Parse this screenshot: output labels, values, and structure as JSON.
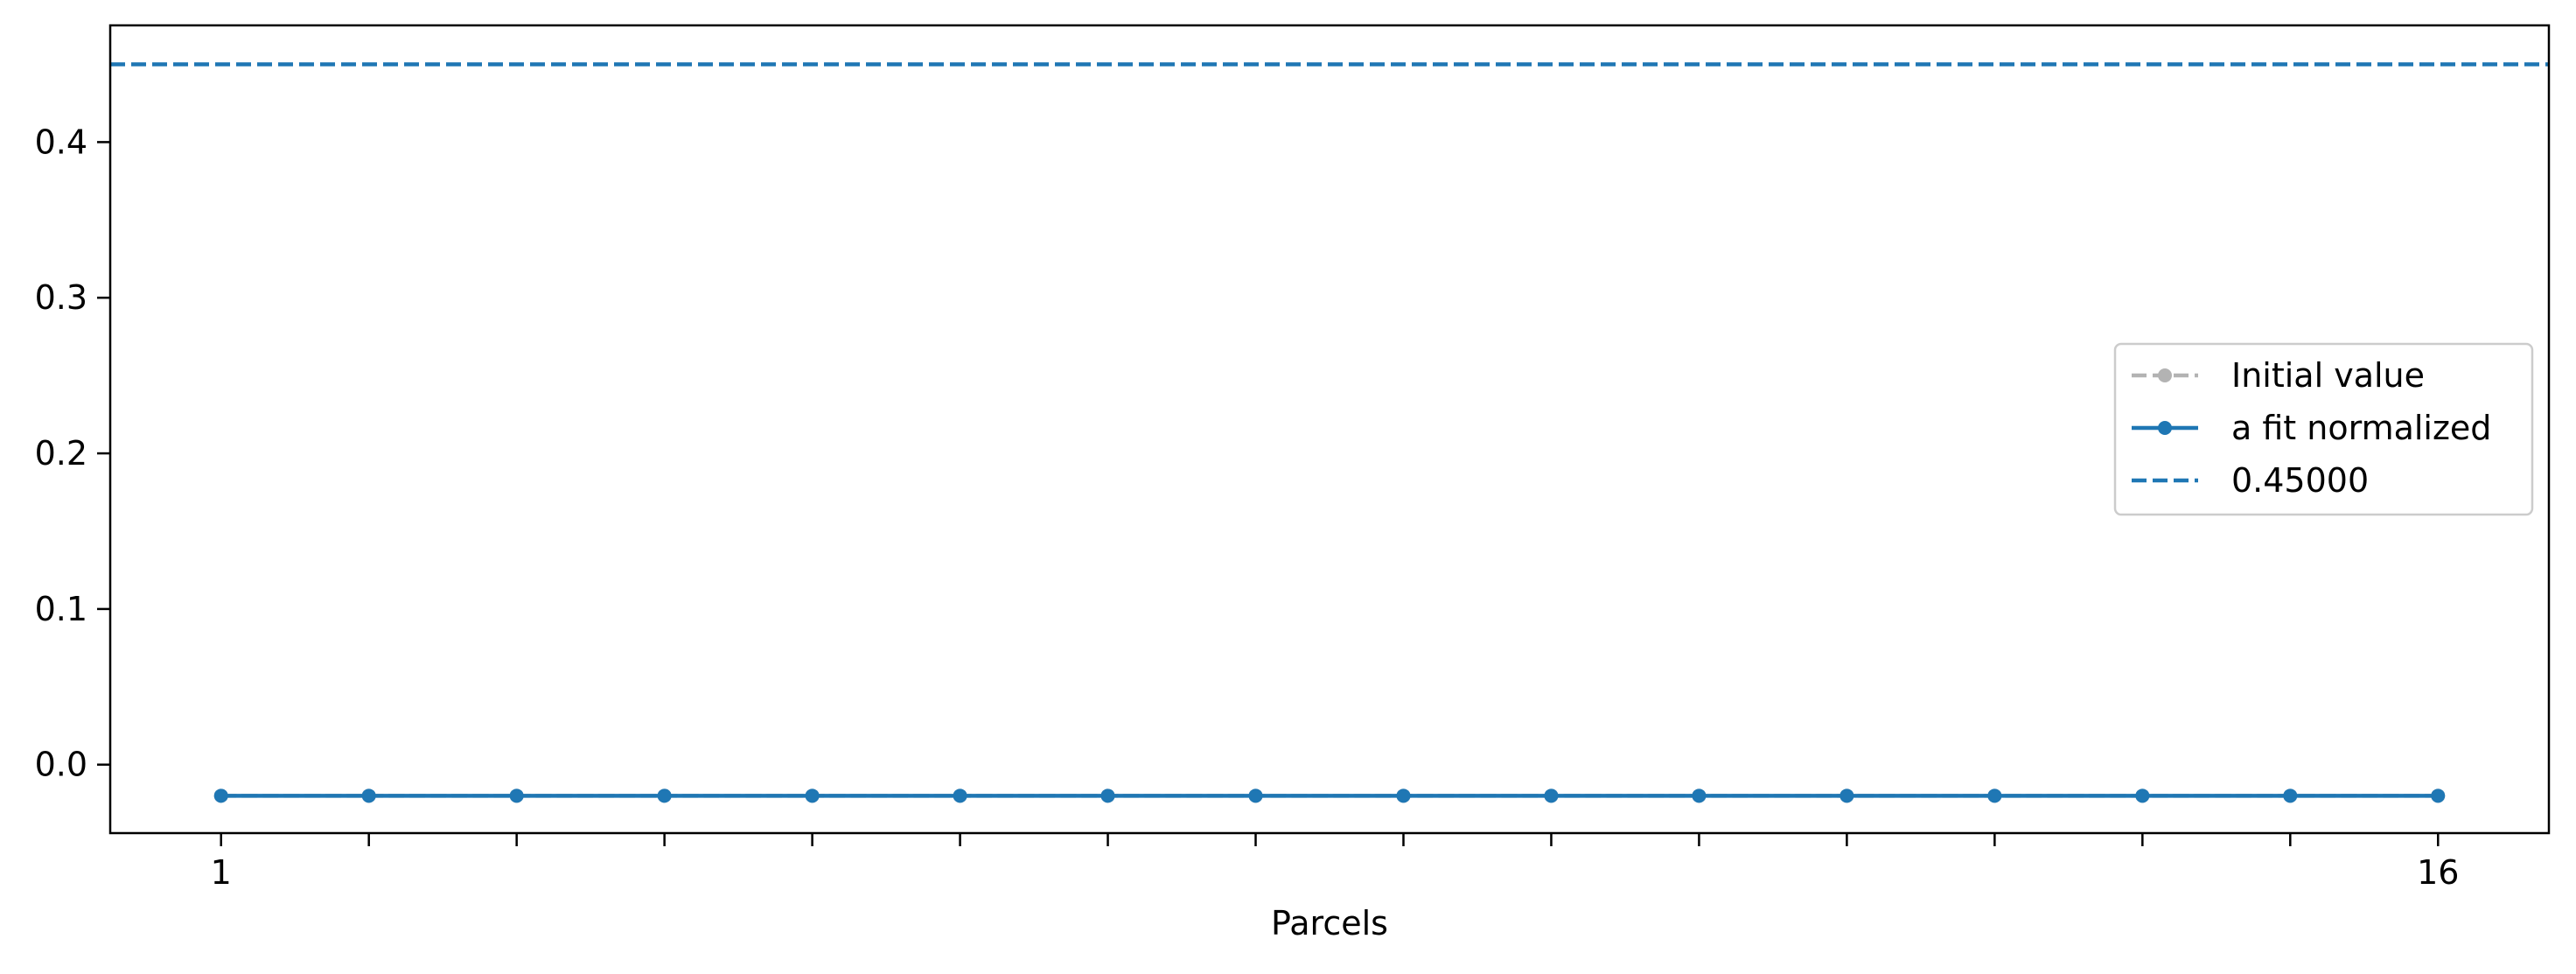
{
  "chart_data": {
    "type": "line",
    "title": "",
    "xlabel": "Parcels",
    "ylabel": "",
    "x": [
      1,
      2,
      3,
      4,
      5,
      6,
      7,
      8,
      9,
      10,
      11,
      12,
      13,
      14,
      15,
      16
    ],
    "xlim": [
      0.25,
      16.75
    ],
    "ylim": [
      -0.044,
      0.475
    ],
    "x_tick_labels": [
      {
        "x": 1,
        "label": "1"
      },
      {
        "x": 16,
        "label": "16"
      }
    ],
    "y_ticks": [
      {
        "value": 0.0,
        "label": "0.0"
      },
      {
        "value": 0.1,
        "label": "0.1"
      },
      {
        "value": 0.2,
        "label": "0.2"
      },
      {
        "value": 0.3,
        "label": "0.3"
      },
      {
        "value": 0.4,
        "label": "0.4"
      }
    ],
    "grid": false,
    "legend_position": "center-right",
    "series": [
      {
        "name": "Initial value",
        "style": "dashed-marker",
        "color": "#b3b3b3",
        "values": [
          -0.02,
          -0.02,
          -0.02,
          -0.02,
          -0.02,
          -0.02,
          -0.02,
          -0.02,
          -0.02,
          -0.02,
          -0.02,
          -0.02,
          -0.02,
          -0.02,
          -0.02,
          -0.02
        ]
      },
      {
        "name": "a fit normalized",
        "style": "solid-marker",
        "color": "#1f77b4",
        "values": [
          -0.02,
          -0.02,
          -0.02,
          -0.02,
          -0.02,
          -0.02,
          -0.02,
          -0.02,
          -0.02,
          -0.02,
          -0.02,
          -0.02,
          -0.02,
          -0.02,
          -0.02,
          -0.02
        ]
      }
    ],
    "reference_lines": [
      {
        "name": "0.45000",
        "orientation": "horizontal",
        "value": 0.45,
        "style": "dashed",
        "color": "#1f77b4"
      }
    ]
  }
}
